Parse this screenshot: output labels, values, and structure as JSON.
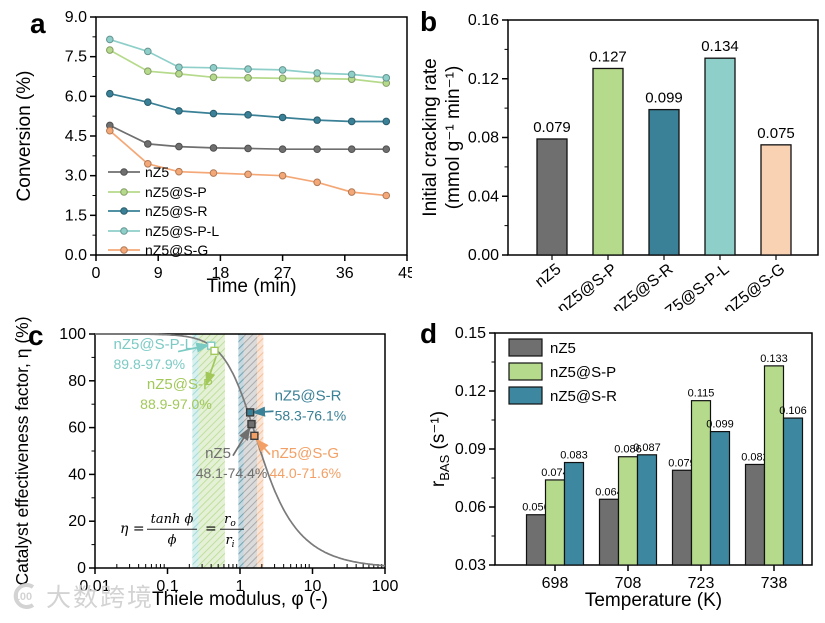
{
  "panels": {
    "a": "a",
    "b": "b",
    "c": "c",
    "d": "d"
  },
  "watermark": {
    "logo_text": "100",
    "text": "大数跨境",
    "color": "#cfcfcf"
  },
  "chart_data": [
    {
      "id": "a",
      "type": "line",
      "xlabel": "Time (min)",
      "ylabel": "Conversion (%)",
      "xlim": [
        0,
        45
      ],
      "ylim": [
        0.0,
        9.0
      ],
      "xtick_vals": [
        0,
        9,
        18,
        27,
        36,
        45
      ],
      "xtick_labels": [
        "0",
        "9",
        "18",
        "27",
        "36",
        "45"
      ],
      "ytick_vals": [
        0,
        1.5,
        3.0,
        4.5,
        6.0,
        7.5,
        9.0
      ],
      "ytick_labels": [
        "0.0",
        "1.5",
        "3.0",
        "4.5",
        "6.0",
        "7.5",
        "9.0"
      ],
      "x": [
        2,
        7.5,
        12,
        17,
        22,
        27,
        32,
        37,
        42
      ],
      "series": [
        {
          "name": "nZ5",
          "color": "#6f6f6f",
          "values": [
            4.9,
            4.2,
            4.1,
            4.05,
            4.03,
            4.0,
            4.0,
            4.0,
            4.0
          ]
        },
        {
          "name": "nZ5@S-P",
          "color": "#b6da8b",
          "values": [
            7.75,
            6.95,
            6.85,
            6.72,
            6.7,
            6.68,
            6.67,
            6.65,
            6.5
          ]
        },
        {
          "name": "nZ5@S-R",
          "color": "#3a8096",
          "values": [
            6.1,
            5.78,
            5.45,
            5.35,
            5.3,
            5.2,
            5.1,
            5.05,
            5.05
          ]
        },
        {
          "name": "nZ5@S-P-L",
          "color": "#8ecfc9",
          "values": [
            8.15,
            7.7,
            7.1,
            7.08,
            7.03,
            7.0,
            6.88,
            6.83,
            6.7
          ]
        },
        {
          "name": "nZ5@S-G",
          "color": "#f5a877",
          "values": [
            4.7,
            3.45,
            3.15,
            3.1,
            3.05,
            3.0,
            2.75,
            2.38,
            2.25
          ]
        }
      ],
      "legend_position": "bottom-left"
    },
    {
      "id": "b",
      "type": "bar",
      "ylabel_lines": [
        "Initial cracking rate",
        "(mmol g⁻¹ min⁻¹)"
      ],
      "ylim": [
        0,
        0.16
      ],
      "ytick_vals": [
        0,
        0.04,
        0.08,
        0.12,
        0.16
      ],
      "ytick_labels": [
        "0.00",
        "0.04",
        "0.08",
        "0.12",
        "0.16"
      ],
      "categories": [
        "nZ5",
        "nZ5@S-P",
        "nZ5@S-R",
        "nZ5@S-P-L",
        "nZ5@S-G"
      ],
      "values": [
        0.079,
        0.127,
        0.099,
        0.134,
        0.075
      ],
      "value_labels": [
        "0.079",
        "0.127",
        "0.099",
        "0.134",
        "0.075"
      ],
      "bar_colors": [
        "#6f6f6f",
        "#b6da8b",
        "#3a8096",
        "#8ecfc9",
        "#f8d2b2"
      ]
    },
    {
      "id": "c",
      "type": "line-log",
      "xlabel": "Thiele modulus, φ (-)",
      "ylabel": "Catalyst effectiveness factor, η (%)",
      "xlim": [
        0.01,
        100
      ],
      "ylim": [
        0,
        100
      ],
      "xtick_vals": [
        0.01,
        0.1,
        1,
        10,
        100
      ],
      "xtick_labels": [
        "0.01",
        "0.1",
        "1",
        "10",
        "100"
      ],
      "ytick_vals": [
        0,
        20,
        40,
        60,
        80,
        100
      ],
      "ytick_labels": [
        "0",
        "20",
        "40",
        "60",
        "80",
        "100"
      ],
      "curve": "eta = 100*tanh(phi)/phi",
      "curve_color": "#7b7b7b",
      "bands": [
        {
          "name": "nZ5@S-P-L",
          "from": 0.22,
          "to": 0.27,
          "color": "#7fcdc7"
        },
        {
          "name": "nZ5@S-P",
          "from": 0.27,
          "to": 0.62,
          "color": "#a8d378"
        },
        {
          "name": "nZ5@S-R",
          "from": 0.95,
          "to": 1.12,
          "color": "#3a8096"
        },
        {
          "name": "nZ5",
          "from": 1.12,
          "to": 1.72,
          "color": "#8a8a8a"
        },
        {
          "name": "nZ5@S-G",
          "from": 1.72,
          "to": 2.1,
          "color": "#f0a874"
        }
      ],
      "markers": [
        {
          "name": "nZ5@S-P-L",
          "phi": 0.4,
          "eta": 95.0,
          "style": "open",
          "color": "#7bcac4"
        },
        {
          "name": "nZ5@S-P",
          "phi": 0.445,
          "eta": 92.8,
          "style": "open",
          "color": "#a2c85a"
        },
        {
          "name": "nZ5@S-R",
          "phi": 1.38,
          "eta": 66.5,
          "style": "filled",
          "color": "#3a8096"
        },
        {
          "name": "nZ5",
          "phi": 1.44,
          "eta": 61.5,
          "style": "filled",
          "color": "#6f6f6f"
        },
        {
          "name": "nZ5@S-G",
          "phi": 1.58,
          "eta": 56.5,
          "style": "filled",
          "color": "#f2a065"
        }
      ],
      "annotations": [
        {
          "line1": "nZ5@S-P-L",
          "line2": "89.8-97.9%",
          "color": "#7bcac4",
          "tx": 0.018,
          "ty": 93.5,
          "tx2": 0.018,
          "ty2": 85.0,
          "arrow": {
            "x1": 0.14,
            "y1": 92.5,
            "x2": 0.365,
            "y2": 95.2
          }
        },
        {
          "line1": "nZ5@S-P",
          "line2": "88.9-97.0%",
          "color": "#a2c85a",
          "tx": 0.052,
          "ty": 76.5,
          "tx2": 0.042,
          "ty2": 68.0,
          "arrow": {
            "x1": 0.47,
            "y1": 90.5,
            "x2": 0.345,
            "y2": 78.5
          }
        },
        {
          "line1": "nZ5@S-R",
          "line2": "58.3-76.1%",
          "color": "#3a8096",
          "tx": 3.0,
          "ty": 71.5,
          "tx2": 3.0,
          "ty2": 63.0,
          "arrow": {
            "x1": 2.9,
            "y1": 67.0,
            "x2": 1.52,
            "y2": 66.5
          }
        },
        {
          "line1": "nZ5",
          "line2": "48.1-74.4%",
          "color": "#6f6f6f",
          "tx": 0.33,
          "ty": 47.0,
          "tx2": 0.245,
          "ty2": 38.5,
          "arrow": {
            "x1": 0.8,
            "y1": 48.0,
            "x2": 1.36,
            "y2": 59.8
          }
        },
        {
          "line1": "nZ5@S-G",
          "line2": "44.0-71.6%",
          "color": "#f2a065",
          "tx": 2.7,
          "ty": 47.0,
          "tx2": 2.55,
          "ty2": 38.5,
          "arrow": {
            "x1": 2.6,
            "y1": 48.5,
            "x2": 1.7,
            "y2": 54.8
          }
        }
      ],
      "formula": {
        "lhs": "η =",
        "num1": "tanh ϕ",
        "den1": "ϕ",
        "eq": "=",
        "num2": "r",
        "num2_sub": "o",
        "den2": "r",
        "den2_sub": "i"
      }
    },
    {
      "id": "d",
      "type": "grouped-bar",
      "xlabel": "Temperature (K)",
      "ylabel_parts": {
        "main": "r",
        "sub": "BAS",
        "unit": " (s⁻¹)"
      },
      "ylim": [
        0.03,
        0.15
      ],
      "ytick_vals": [
        0.03,
        0.06,
        0.09,
        0.12,
        0.15
      ],
      "ytick_labels": [
        "0.03",
        "0.06",
        "0.09",
        "0.12",
        "0.15"
      ],
      "categories": [
        "698",
        "708",
        "723",
        "738"
      ],
      "series": [
        {
          "name": "nZ5",
          "color": "#6f6f6f",
          "values": [
            0.056,
            0.064,
            0.079,
            0.082
          ],
          "labels": [
            "0.056",
            "0.064",
            "0.079",
            "0.082"
          ]
        },
        {
          "name": "nZ5@S-P",
          "color": "#b6da8b",
          "values": [
            0.074,
            0.086,
            0.115,
            0.133
          ],
          "labels": [
            "0.074",
            "0.086",
            "0.115",
            "0.133"
          ]
        },
        {
          "name": "nZ5@S-R",
          "color": "#3d88a0",
          "values": [
            0.083,
            0.087,
            0.099,
            0.106
          ],
          "labels": [
            "0.083",
            "0.087",
            "0.099",
            "0.106"
          ]
        }
      ],
      "legend_position": "top-left"
    }
  ]
}
